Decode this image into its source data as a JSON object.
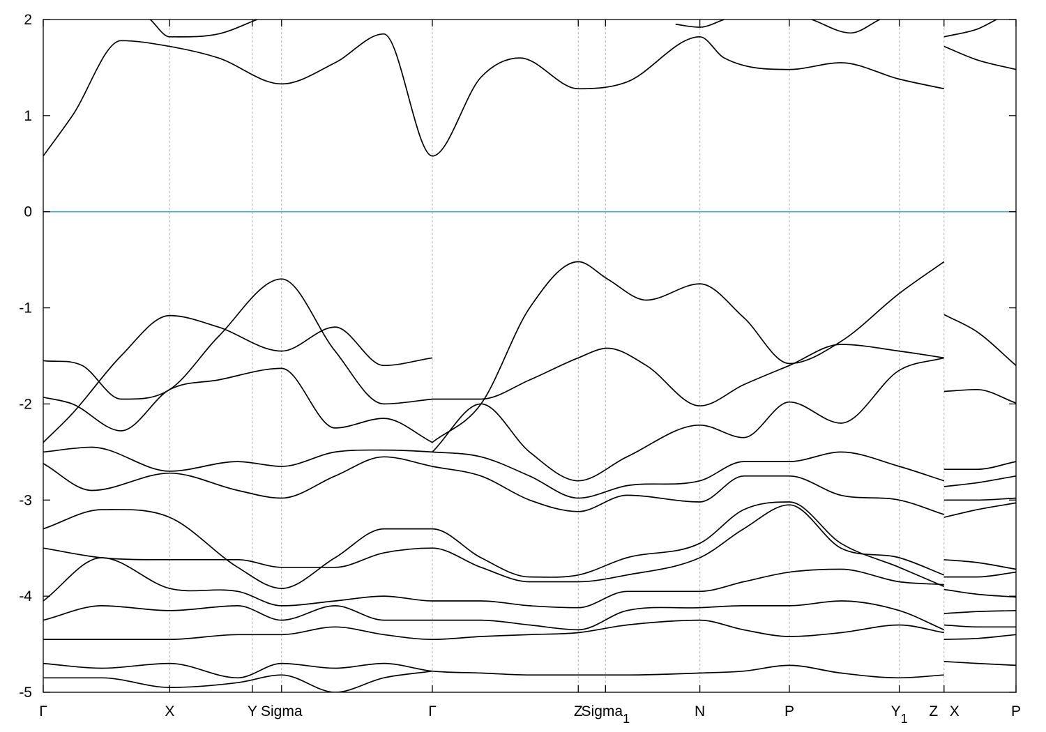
{
  "chart_data": {
    "type": "line",
    "title": "",
    "xlabel": "",
    "ylabel": "",
    "ylim": [
      -5,
      2
    ],
    "y_ticks": [
      "2",
      "1",
      "0",
      "-1",
      "-2",
      "-3",
      "-4",
      "-5"
    ],
    "y_tick_values": [
      2,
      1,
      0,
      -1,
      -2,
      -3,
      -4,
      -5
    ],
    "kpath_total": 10.0,
    "kpoints": [
      {
        "label": "Γ",
        "sub": "",
        "x": 0.0
      },
      {
        "label": "X",
        "sub": "",
        "x": 1.3
      },
      {
        "label": "Y",
        "sub": "",
        "x": 2.15
      },
      {
        "label": "Sigma",
        "sub": "",
        "x": 2.45
      },
      {
        "label": "Γ",
        "sub": "",
        "x": 4.0
      },
      {
        "label": "Z",
        "sub": "",
        "x": 5.5
      },
      {
        "label": "Sigma",
        "sub": "1",
        "x": 5.78
      },
      {
        "label": "N",
        "sub": "",
        "x": 6.75
      },
      {
        "label": "P",
        "sub": "",
        "x": 7.67
      },
      {
        "label": "Y",
        "sub": "1",
        "x": 8.8
      },
      {
        "label": "Z",
        "sub": "",
        "x": 9.26
      },
      {
        "label": "X",
        "sub": "",
        "x": 9.26
      },
      {
        "label": "P",
        "sub": "",
        "x": 10.0
      }
    ],
    "zero_line_color": "#4aa8c8",
    "band_color": "#000000",
    "grid": "dashed vertical lines at high-symmetry points",
    "bands": [
      {
        "x": [
          0,
          0.3,
          0.8,
          1.3,
          1.8,
          2.45,
          3.0,
          3.5,
          4.0,
          4.5,
          4.9,
          5.5,
          6.0,
          6.75,
          7.0,
          7.67,
          8.2,
          8.8,
          9.26
        ],
        "y": [
          0.58,
          1.0,
          1.78,
          1.72,
          1.6,
          1.33,
          1.55,
          1.85,
          0.58,
          1.4,
          1.6,
          1.28,
          1.35,
          1.82,
          1.6,
          1.48,
          1.55,
          1.38,
          1.28
        ]
      },
      {
        "x": [
          9.26,
          9.6,
          10.0
        ],
        "y": [
          1.72,
          1.58,
          1.48
        ]
      },
      {
        "x": [
          1.1,
          1.3,
          1.8,
          2.2
        ],
        "y": [
          2.0,
          1.82,
          1.85,
          2.0
        ]
      },
      {
        "x": [
          6.5,
          6.75,
          7.0
        ],
        "y": [
          1.95,
          1.92,
          2.0
        ]
      },
      {
        "x": [
          7.9,
          8.3,
          8.6
        ],
        "y": [
          2.0,
          1.86,
          2.0
        ]
      },
      {
        "x": [
          9.26,
          9.6,
          9.8
        ],
        "y": [
          1.82,
          1.9,
          2.0
        ]
      },
      {
        "x": [
          0,
          0.3,
          0.8,
          1.3,
          1.8,
          2.45,
          3.0,
          3.5,
          4.0
        ],
        "y": [
          -2.4,
          -2.1,
          -1.5,
          -1.08,
          -1.2,
          -1.45,
          -1.2,
          -1.6,
          -1.52
        ]
      },
      {
        "x": [
          0,
          0.4,
          0.8,
          1.3,
          1.8,
          2.45,
          3.0,
          3.5,
          4.0
        ],
        "y": [
          -1.55,
          -1.6,
          -1.95,
          -1.85,
          -1.3,
          -0.7,
          -1.45,
          -2.0,
          -1.95
        ]
      },
      {
        "x": [
          0,
          0.3,
          0.8,
          1.3,
          1.8,
          2.45,
          3.0,
          3.5,
          4.0
        ],
        "y": [
          -1.93,
          -2.0,
          -2.28,
          -1.85,
          -1.75,
          -1.63,
          -2.25,
          -2.15,
          -2.4
        ]
      },
      {
        "x": [
          4.0,
          4.5,
          5.0,
          5.5,
          5.8,
          6.2,
          6.75,
          7.2,
          7.67,
          8.2,
          8.8,
          9.26
        ],
        "y": [
          -2.4,
          -2.0,
          -1.0,
          -0.52,
          -0.7,
          -0.92,
          -0.75,
          -1.1,
          -1.58,
          -1.35,
          -0.85,
          -0.52
        ]
      },
      {
        "x": [
          4.0,
          4.5,
          5.0,
          5.5,
          5.8,
          6.2,
          6.75,
          7.2,
          7.67,
          8.2,
          8.8,
          9.26
        ],
        "y": [
          -1.95,
          -1.95,
          -1.75,
          -1.52,
          -1.42,
          -1.6,
          -2.02,
          -1.8,
          -1.6,
          -1.38,
          -1.45,
          -1.52
        ]
      },
      {
        "x": [
          4.0,
          4.5,
          5.0,
          5.5,
          6.0,
          6.75,
          7.2,
          7.67,
          8.2,
          8.8,
          9.26
        ],
        "y": [
          -2.5,
          -2.0,
          -2.5,
          -2.8,
          -2.55,
          -2.22,
          -2.35,
          -1.98,
          -2.2,
          -1.65,
          -1.52
        ]
      },
      {
        "x": [
          9.26,
          9.6,
          10.0
        ],
        "y": [
          -1.07,
          -1.25,
          -1.6
        ]
      },
      {
        "x": [
          9.26,
          9.6,
          10.0
        ],
        "y": [
          -1.87,
          -1.85,
          -1.99
        ]
      },
      {
        "x": [
          0,
          0.5,
          1.3,
          2.0,
          2.45,
          3.0,
          3.5,
          4.0,
          4.5,
          5.0,
          5.5,
          6.0,
          6.75,
          7.2,
          7.67,
          8.2,
          8.8,
          9.26
        ],
        "y": [
          -2.5,
          -2.45,
          -2.7,
          -2.6,
          -2.65,
          -2.5,
          -2.48,
          -2.5,
          -2.55,
          -2.75,
          -2.98,
          -2.85,
          -2.8,
          -2.6,
          -2.6,
          -2.5,
          -2.65,
          -2.8
        ]
      },
      {
        "x": [
          0,
          0.5,
          1.3,
          2.0,
          2.45,
          3.0,
          3.5,
          4.0,
          4.5,
          5.0,
          5.5,
          6.0,
          6.75,
          7.2,
          7.67,
          8.2,
          8.8,
          9.26
        ],
        "y": [
          -2.62,
          -2.9,
          -2.72,
          -2.9,
          -2.98,
          -2.75,
          -2.55,
          -2.65,
          -2.75,
          -3.0,
          -3.12,
          -2.95,
          -3.02,
          -2.75,
          -2.75,
          -2.95,
          -3.0,
          -3.15
        ]
      },
      {
        "x": [
          0,
          0.6,
          1.3,
          2.0,
          2.45,
          3.0,
          3.5,
          4.0,
          4.5,
          5.0,
          5.5,
          6.0,
          6.75,
          7.2,
          7.67,
          8.2,
          8.8,
          9.26
        ],
        "y": [
          -3.3,
          -3.1,
          -3.18,
          -3.7,
          -3.92,
          -3.6,
          -3.3,
          -3.3,
          -3.6,
          -3.8,
          -3.78,
          -3.6,
          -3.45,
          -3.1,
          -3.02,
          -3.45,
          -3.7,
          -3.9
        ]
      },
      {
        "x": [
          0,
          0.6,
          1.3,
          2.0,
          2.45,
          3.0,
          3.5,
          4.0,
          4.5,
          5.0,
          5.5,
          6.0,
          6.75,
          7.2,
          7.67,
          8.2,
          8.8,
          9.26
        ],
        "y": [
          -3.5,
          -3.6,
          -3.62,
          -3.62,
          -3.7,
          -3.7,
          -3.55,
          -3.5,
          -3.7,
          -3.85,
          -3.85,
          -3.78,
          -3.6,
          -3.3,
          -3.05,
          -3.5,
          -3.6,
          -3.78
        ]
      },
      {
        "x": [
          0,
          0.6,
          1.3,
          2.0,
          2.45,
          3.0,
          3.5,
          4.0,
          4.5,
          5.0,
          5.5,
          6.0,
          6.75,
          7.2,
          7.67,
          8.2,
          8.8,
          9.26
        ],
        "y": [
          -4.05,
          -3.6,
          -3.92,
          -3.95,
          -4.1,
          -4.05,
          -4.0,
          -4.05,
          -4.05,
          -4.1,
          -4.12,
          -3.95,
          -3.95,
          -3.85,
          -3.75,
          -3.72,
          -3.85,
          -3.88
        ]
      },
      {
        "x": [
          0,
          0.6,
          1.3,
          2.0,
          2.45,
          3.0,
          3.5,
          4.0,
          4.5,
          5.0,
          5.5,
          6.0,
          6.75,
          7.2,
          7.67,
          8.2,
          8.8,
          9.26
        ],
        "y": [
          -4.25,
          -4.1,
          -4.15,
          -4.1,
          -4.25,
          -4.1,
          -4.25,
          -4.25,
          -4.25,
          -4.3,
          -4.35,
          -4.15,
          -4.12,
          -4.1,
          -4.1,
          -4.05,
          -4.15,
          -4.35
        ]
      },
      {
        "x": [
          0,
          0.8,
          1.3,
          2.0,
          2.45,
          3.0,
          3.5,
          4.0,
          4.5,
          5.0,
          5.5,
          6.0,
          6.75,
          7.2,
          7.67,
          8.2,
          8.8,
          9.26
        ],
        "y": [
          -4.45,
          -4.45,
          -4.45,
          -4.4,
          -4.4,
          -4.32,
          -4.4,
          -4.45,
          -4.42,
          -4.4,
          -4.38,
          -4.3,
          -4.25,
          -4.35,
          -4.42,
          -4.38,
          -4.3,
          -4.38
        ]
      },
      {
        "x": [
          0,
          0.6,
          1.3,
          2.0,
          2.45,
          3.0,
          3.5,
          4.0,
          4.5,
          5.0,
          5.5,
          6.0,
          6.75,
          7.2,
          7.67,
          8.2,
          8.8,
          9.26
        ],
        "y": [
          -4.7,
          -4.75,
          -4.7,
          -4.85,
          -4.7,
          -4.75,
          -4.7,
          -4.78,
          -4.8,
          -4.82,
          -4.82,
          -4.82,
          -4.8,
          -4.78,
          -4.72,
          -4.8,
          -4.85,
          -4.82
        ]
      },
      {
        "x": [
          0,
          0.6,
          1.3,
          2.0,
          2.45,
          3.0,
          3.5,
          4.0
        ],
        "y": [
          -4.85,
          -4.85,
          -4.95,
          -4.9,
          -4.82,
          -5.0,
          -4.85,
          -4.78
        ]
      },
      {
        "x": [
          9.26,
          9.6,
          10.0
        ],
        "y": [
          -2.68,
          -2.68,
          -2.6
        ]
      },
      {
        "x": [
          9.26,
          9.6,
          10.0
        ],
        "y": [
          -2.86,
          -2.82,
          -2.75
        ]
      },
      {
        "x": [
          9.26,
          9.6,
          10.0
        ],
        "y": [
          -3.0,
          -3.0,
          -2.98
        ]
      },
      {
        "x": [
          9.26,
          9.6,
          10.0
        ],
        "y": [
          -3.18,
          -3.1,
          -3.03
        ]
      },
      {
        "x": [
          9.26,
          9.6,
          10.0
        ],
        "y": [
          -3.62,
          -3.65,
          -3.72
        ]
      },
      {
        "x": [
          9.26,
          9.6,
          10.0
        ],
        "y": [
          -3.8,
          -3.8,
          -3.75
        ]
      },
      {
        "x": [
          9.26,
          9.6,
          10.0
        ],
        "y": [
          -3.93,
          -3.98,
          -4.01
        ]
      },
      {
        "x": [
          9.26,
          9.6,
          10.0
        ],
        "y": [
          -4.18,
          -4.16,
          -4.15
        ]
      },
      {
        "x": [
          9.26,
          9.6,
          10.0
        ],
        "y": [
          -4.3,
          -4.32,
          -4.32
        ]
      },
      {
        "x": [
          9.26,
          9.6,
          10.0
        ],
        "y": [
          -4.45,
          -4.44,
          -4.4
        ]
      },
      {
        "x": [
          9.26,
          9.6,
          10.0
        ],
        "y": [
          -4.68,
          -4.7,
          -4.72
        ]
      }
    ]
  }
}
